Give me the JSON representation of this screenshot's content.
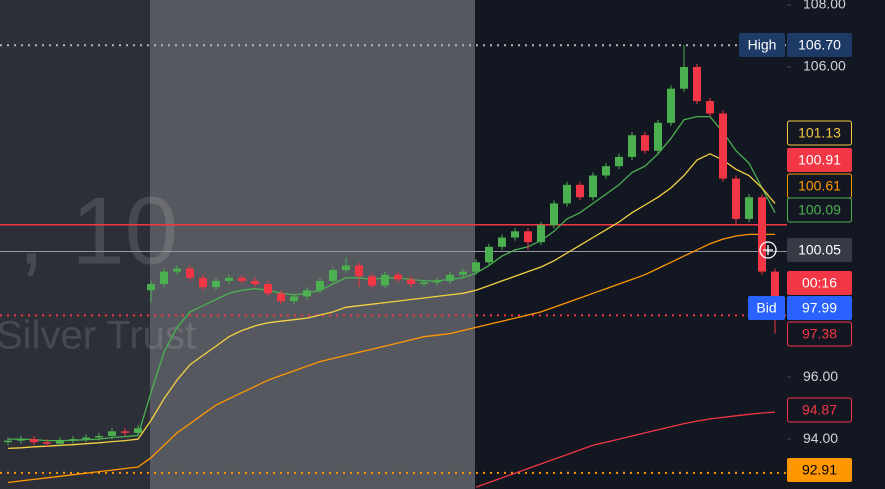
{
  "chart_data": {
    "type": "candlestick",
    "watermark": [
      ", 10",
      "Silver Trust"
    ],
    "ylim": [
      92.39,
      108.16
    ],
    "yticks": [
      {
        "value": 108,
        "label": "108.00"
      },
      {
        "value": 106,
        "label": "106.00"
      },
      {
        "value": 96,
        "label": "96.00"
      },
      {
        "value": 94,
        "label": "94.00"
      }
    ],
    "up_color": "#4caf50",
    "down_color": "#f23645",
    "open": [
      93.9,
      93.95,
      94.0,
      93.9,
      93.85,
      93.95,
      94.0,
      94.05,
      94.1,
      94.25,
      94.2,
      98.8,
      99.0,
      99.4,
      99.5,
      99.2,
      98.9,
      99.1,
      99.2,
      99.1,
      99.0,
      98.7,
      98.45,
      98.6,
      98.8,
      99.1,
      99.45,
      99.6,
      99.25,
      98.95,
      99.3,
      99.15,
      99.0,
      99.05,
      99.1,
      99.3,
      99.4,
      99.7,
      100.2,
      100.5,
      100.7,
      100.35,
      100.9,
      101.6,
      102.2,
      101.8,
      102.5,
      102.8,
      103.1,
      103.8,
      103.3,
      104.2,
      105.3,
      106.0,
      104.9,
      104.5,
      102.4,
      101.1,
      101.8,
      99.4
    ],
    "high": [
      94.05,
      94.1,
      94.1,
      94.0,
      94.05,
      94.1,
      94.15,
      94.2,
      94.35,
      94.35,
      94.45,
      99.1,
      99.5,
      99.6,
      99.6,
      99.3,
      99.2,
      99.3,
      99.3,
      99.2,
      99.1,
      98.8,
      98.7,
      98.9,
      99.2,
      99.55,
      99.85,
      99.7,
      99.35,
      99.4,
      99.4,
      99.25,
      99.15,
      99.2,
      99.4,
      99.5,
      99.8,
      100.3,
      100.6,
      100.8,
      100.8,
      101.0,
      101.7,
      102.3,
      102.3,
      102.6,
      102.9,
      103.2,
      103.9,
      103.9,
      104.3,
      105.4,
      106.7,
      106.1,
      105.0,
      104.6,
      102.5,
      101.9,
      101.9,
      99.5
    ],
    "low": [
      93.8,
      93.85,
      93.8,
      93.75,
      93.75,
      93.85,
      93.9,
      93.95,
      94.0,
      94.1,
      94.1,
      98.4,
      98.9,
      99.3,
      99.1,
      98.8,
      98.8,
      99.0,
      99.0,
      98.9,
      98.6,
      98.35,
      98.35,
      98.5,
      98.7,
      99.0,
      99.35,
      98.9,
      98.85,
      98.85,
      99.05,
      98.9,
      98.9,
      98.95,
      99.0,
      99.2,
      99.3,
      99.6,
      100.1,
      100.4,
      100.1,
      100.25,
      100.8,
      101.5,
      101.7,
      101.7,
      102.4,
      102.7,
      103.0,
      103.2,
      103.2,
      104.1,
      105.2,
      104.8,
      104.4,
      102.3,
      100.9,
      101.0,
      99.3,
      97.4
    ],
    "close": [
      93.95,
      94.0,
      93.9,
      93.85,
      93.95,
      94.0,
      94.05,
      94.1,
      94.25,
      94.2,
      94.35,
      99.0,
      99.4,
      99.5,
      99.2,
      98.9,
      99.1,
      99.2,
      99.1,
      99.0,
      98.7,
      98.45,
      98.6,
      98.8,
      99.1,
      99.45,
      99.6,
      99.25,
      98.95,
      99.3,
      99.15,
      99.0,
      99.05,
      99.1,
      99.3,
      99.4,
      99.7,
      100.2,
      100.5,
      100.7,
      100.35,
      100.9,
      101.6,
      102.2,
      101.8,
      102.5,
      102.8,
      103.1,
      103.8,
      103.3,
      104.2,
      105.3,
      106.0,
      104.9,
      104.5,
      102.4,
      101.1,
      101.8,
      99.4,
      98.2
    ],
    "series": [
      {
        "color": "#4caf50",
        "values": [
          94.0,
          94.0,
          93.98,
          93.95,
          93.95,
          93.96,
          93.98,
          94.0,
          94.05,
          94.08,
          94.12,
          95.5,
          96.8,
          97.6,
          98.1,
          98.3,
          98.5,
          98.7,
          98.8,
          98.85,
          98.8,
          98.7,
          98.65,
          98.7,
          98.8,
          99.0,
          99.2,
          99.2,
          99.15,
          99.2,
          99.2,
          99.15,
          99.1,
          99.1,
          99.15,
          99.2,
          99.35,
          99.6,
          99.9,
          100.1,
          100.2,
          100.4,
          100.7,
          101.1,
          101.3,
          101.6,
          101.9,
          102.2,
          102.6,
          102.8,
          103.2,
          103.7,
          104.3,
          104.4,
          104.4,
          103.9,
          103.3,
          102.9,
          102.1,
          101.3
        ]
      },
      {
        "color": "#f5d142",
        "values": [
          93.7,
          93.72,
          93.75,
          93.77,
          93.8,
          93.82,
          93.85,
          93.88,
          93.92,
          93.95,
          94.0,
          94.6,
          95.3,
          95.9,
          96.4,
          96.7,
          97.0,
          97.3,
          97.5,
          97.65,
          97.75,
          97.8,
          97.85,
          97.9,
          98.0,
          98.1,
          98.25,
          98.3,
          98.35,
          98.4,
          98.45,
          98.5,
          98.55,
          98.6,
          98.65,
          98.7,
          98.8,
          98.95,
          99.1,
          99.25,
          99.4,
          99.55,
          99.75,
          100.0,
          100.25,
          100.5,
          100.75,
          101.0,
          101.3,
          101.55,
          101.8,
          102.1,
          102.5,
          103.0,
          103.2,
          103.0,
          102.7,
          102.5,
          102.1,
          101.6
        ]
      },
      {
        "color": "#ff9800",
        "values": [
          92.6,
          92.65,
          92.7,
          92.75,
          92.8,
          92.85,
          92.9,
          92.95,
          93.0,
          93.05,
          93.1,
          93.4,
          93.8,
          94.2,
          94.5,
          94.8,
          95.1,
          95.3,
          95.5,
          95.7,
          95.9,
          96.05,
          96.2,
          96.35,
          96.5,
          96.6,
          96.7,
          96.8,
          96.9,
          97.0,
          97.1,
          97.2,
          97.3,
          97.35,
          97.4,
          97.5,
          97.6,
          97.7,
          97.8,
          97.9,
          98.0,
          98.1,
          98.25,
          98.4,
          98.55,
          98.7,
          98.85,
          99.0,
          99.15,
          99.3,
          99.5,
          99.7,
          99.9,
          100.1,
          100.3,
          100.45,
          100.55,
          100.6,
          100.6,
          100.6
        ]
      },
      {
        "color": "#f23645",
        "values": [
          null,
          null,
          null,
          null,
          null,
          null,
          null,
          null,
          null,
          null,
          null,
          null,
          null,
          null,
          null,
          null,
          null,
          null,
          null,
          null,
          null,
          null,
          null,
          null,
          null,
          null,
          null,
          null,
          null,
          null,
          null,
          null,
          null,
          null,
          null,
          null,
          92.45,
          92.6,
          92.75,
          92.9,
          93.05,
          93.2,
          93.35,
          93.5,
          93.65,
          93.8,
          93.9,
          94.0,
          94.1,
          94.2,
          94.3,
          94.4,
          94.5,
          94.58,
          94.65,
          94.7,
          94.75,
          94.8,
          94.84,
          94.87
        ]
      }
    ],
    "price_markers": [
      {
        "value": 106.7,
        "label": "106.70",
        "tag": "High",
        "bg": "#1e3a66",
        "fg": "#ffffff",
        "line": "dotted",
        "line_color": "#b2b5be"
      },
      {
        "value": 101.13,
        "bg": "#131722",
        "fg": "#f5c542",
        "border": "#f5c542"
      },
      {
        "value": 100.91,
        "bg": "#f23645",
        "fg": "#ffffff",
        "line": "solid",
        "line_color": "#f23645"
      },
      {
        "value": 100.61,
        "bg": "#131722",
        "fg": "#ff9800",
        "border": "#ff9800"
      },
      {
        "value": 100.09,
        "bg": "#131722",
        "fg": "#4caf50",
        "border": "#4caf50"
      },
      {
        "value": 100.05,
        "bg": "#363a45",
        "fg": "#ffffff",
        "line": "solid",
        "line_color": "#9598a1"
      },
      {
        "label": "00:16",
        "bg": "#f23645",
        "fg": "#ffffff"
      },
      {
        "value": 97.99,
        "tag": "Bid",
        "bg": "#2962ff",
        "fg": "#ffffff",
        "line": "dotted",
        "line_color": "#f23645"
      },
      {
        "value": 97.38,
        "bg": "#131722",
        "fg": "#f23645",
        "border": "#f23645"
      },
      {
        "value": 94.87,
        "bg": "#131722",
        "fg": "#f23645",
        "border": "#f23645"
      },
      {
        "value": 92.91,
        "bg": "#ff9800",
        "fg": "#000000",
        "line": "dotted",
        "line_color": "#ff9800"
      }
    ]
  }
}
